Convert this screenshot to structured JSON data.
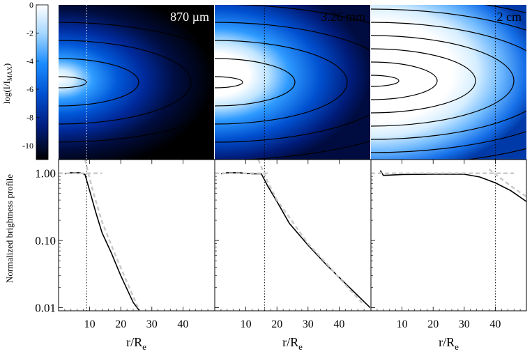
{
  "chart_data": [
    {
      "type": "heatmap",
      "panel": "image-1",
      "title": "870 µm",
      "colorbar": {
        "label_main": "log(I/I",
        "label_sub": "MAX",
        "label_close": ")",
        "ticks": [
          "0",
          "-2",
          "-4",
          "-6",
          "-8",
          "-10"
        ],
        "tick_values": [
          0,
          -2,
          -4,
          -6,
          -8,
          -10
        ],
        "range": [
          0,
          -11
        ]
      },
      "contour_levels": 4,
      "vertical_marker_r": 9,
      "bright_core_extent_r": 15
    },
    {
      "type": "heatmap",
      "panel": "image-2",
      "title": "3.26 mm",
      "contour_levels": 6,
      "vertical_marker_r": 16,
      "bright_core_extent_r": 25
    },
    {
      "type": "heatmap",
      "panel": "image-3",
      "title": "2 cm",
      "contour_levels": 9,
      "vertical_marker_r": 40,
      "bright_core_extent_r": 45
    },
    {
      "type": "line",
      "panel": "profile-1",
      "xlabel": "r/R",
      "xlabel_sub": "e",
      "ylabel": "Normalized brightness profile",
      "xlim": [
        0,
        50
      ],
      "ylim_log": [
        0.009,
        1.6
      ],
      "y_scale": "log",
      "xticks": [
        "10",
        "20",
        "30",
        "40"
      ],
      "xtick_values": [
        10,
        20,
        30,
        40
      ],
      "yticks": [
        "1.00",
        "0.10",
        "0.01"
      ],
      "ytick_values": [
        1,
        0.1,
        0.01
      ],
      "vertical_marker_x": 9,
      "series": [
        {
          "style": "solid",
          "x": [
            2,
            4,
            7,
            8.5,
            10,
            12,
            14,
            17,
            20,
            24,
            26
          ],
          "y": [
            0.98,
            1.02,
            1.02,
            0.96,
            0.55,
            0.26,
            0.13,
            0.065,
            0.03,
            0.012,
            0.009
          ]
        },
        {
          "style": "dashed-flat",
          "x": [
            0,
            14
          ],
          "y": [
            1.0,
            1.0
          ]
        },
        {
          "style": "dashed-powerlaw",
          "x": [
            8.5,
            11,
            14,
            18,
            22,
            26
          ],
          "y": [
            1.6,
            0.55,
            0.19,
            0.065,
            0.024,
            0.009
          ]
        }
      ]
    },
    {
      "type": "line",
      "panel": "profile-2",
      "xlim": [
        0,
        50
      ],
      "ylim_log": [
        0.009,
        1.6
      ],
      "y_scale": "log",
      "xticks": [
        "10",
        "20",
        "30",
        "40"
      ],
      "xtick_values": [
        10,
        20,
        30,
        40
      ],
      "vertical_marker_x": 16,
      "series": [
        {
          "style": "solid",
          "x": [
            2,
            4,
            8,
            12,
            15,
            17,
            20,
            24,
            30,
            36,
            42,
            50
          ],
          "y": [
            0.98,
            1.02,
            1.02,
            0.98,
            0.98,
            0.65,
            0.38,
            0.18,
            0.085,
            0.043,
            0.023,
            0.01
          ]
        },
        {
          "style": "dashed-flat",
          "x": [
            0,
            18
          ],
          "y": [
            1.0,
            1.0
          ]
        },
        {
          "style": "dashed-powerlaw",
          "x": [
            14,
            17,
            20,
            25,
            30,
            36,
            42,
            48
          ],
          "y": [
            1.6,
            0.75,
            0.4,
            0.19,
            0.09,
            0.045,
            0.022,
            0.011
          ]
        }
      ]
    },
    {
      "type": "line",
      "panel": "profile-3",
      "xlim": [
        0,
        50
      ],
      "ylim_log": [
        0.009,
        1.6
      ],
      "y_scale": "log",
      "xticks": [
        "10",
        "20",
        "30",
        "40"
      ],
      "xtick_values": [
        10,
        20,
        30,
        40
      ],
      "vertical_marker_x": 40,
      "series": [
        {
          "style": "solid",
          "x": [
            3,
            4,
            6,
            10,
            20,
            30,
            35,
            40,
            45,
            50
          ],
          "y": [
            1.1,
            0.93,
            0.94,
            0.96,
            0.97,
            0.97,
            0.88,
            0.72,
            0.55,
            0.38
          ]
        },
        {
          "style": "dashed-flat",
          "x": [
            0,
            46
          ],
          "y": [
            1.0,
            1.0
          ]
        },
        {
          "style": "dashed-powerlaw",
          "x": [
            38,
            42,
            46,
            50
          ],
          "y": [
            1.15,
            0.82,
            0.6,
            0.45
          ]
        }
      ]
    }
  ]
}
